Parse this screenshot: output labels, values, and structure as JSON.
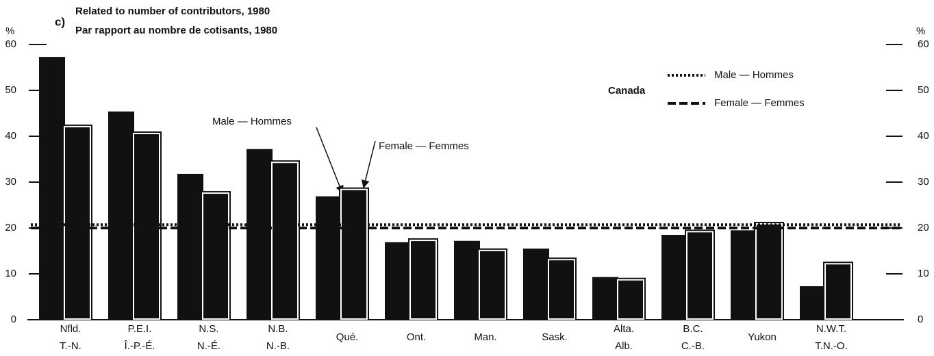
{
  "chart_data": {
    "type": "bar",
    "panel_label": "c)",
    "title": "Related to number of contributors, 1980",
    "subtitle": "Par rapport au nombre de cotisants, 1980",
    "y_unit": "%",
    "y2_unit": "%",
    "categories": [
      [
        "Nfld.",
        "T.-N."
      ],
      [
        "P.E.I.",
        "Î.-P.-É."
      ],
      [
        "N.S.",
        "N.-É."
      ],
      [
        "N.B.",
        "N.-B."
      ],
      [
        "Qué."
      ],
      [
        "Ont."
      ],
      [
        "Man."
      ],
      [
        "Sask."
      ],
      [
        "Alta.",
        "Alb."
      ],
      [
        "B.C.",
        "C.-B."
      ],
      [
        "Yukon"
      ],
      [
        "N.W.T.",
        "T.N.-O."
      ]
    ],
    "series": [
      {
        "name": "Male — Hommes",
        "color": "#111111",
        "values": [
          57.3,
          45.4,
          31.8,
          37.2,
          26.9,
          16.9,
          17.2,
          15.5,
          9.3,
          18.5,
          19.5,
          7.3
        ]
      },
      {
        "name": "Female — Femmes",
        "color": "#111111",
        "values": [
          42.1,
          40.6,
          27.6,
          34.3,
          28.4,
          17.3,
          15.1,
          13.1,
          8.7,
          19.2,
          20.9,
          12.2
        ]
      }
    ],
    "legend_title": "Canada",
    "reference_lines": [
      {
        "name": "Male — Hommes",
        "value": 20.7,
        "style": "dotted"
      },
      {
        "name": "Female — Femmes",
        "value": 20,
        "style": "dashed"
      }
    ],
    "ylim": [
      0,
      60
    ],
    "yticks": [
      0,
      10,
      20,
      30,
      40,
      50,
      60
    ],
    "y2lim": [
      0,
      60
    ],
    "y2ticks": [
      0,
      10,
      20,
      30,
      40,
      50,
      60
    ]
  }
}
